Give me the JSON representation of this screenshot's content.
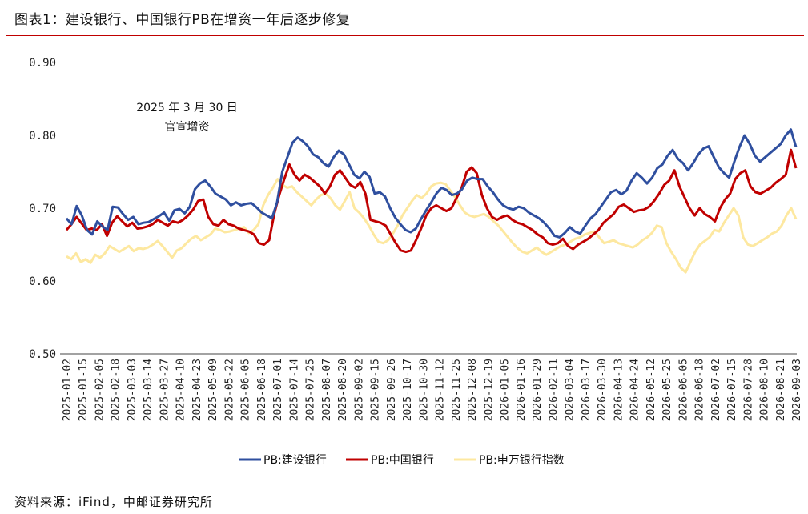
{
  "figure": {
    "title": "图表1：建设银行、中国银行PB在增资一年后逐步修复",
    "source": "资料来源：iFind，中邮证券研究所",
    "accent_color": "#c00000"
  },
  "chart_data": {
    "type": "line",
    "title": "",
    "xlabel": "",
    "ylabel": "",
    "ylim": [
      0.5,
      0.9
    ],
    "yticks": [
      "0.90",
      "0.80",
      "0.70",
      "0.60",
      "0.50"
    ],
    "yticks_values": [
      0.9,
      0.8,
      0.7,
      0.6,
      0.5
    ],
    "grid": false,
    "legend_position": "bottom",
    "x_tick_labels": [
      "2025-01-02",
      "2025-01-15",
      "2025-02-05",
      "2025-02-18",
      "2025-03-03",
      "2025-03-14",
      "2025-03-27",
      "2025-04-10",
      "2025-04-23",
      "2025-05-09",
      "2025-05-22",
      "2025-06-05",
      "2025-06-18",
      "2025-07-01",
      "2025-07-14",
      "2025-07-25",
      "2025-08-07",
      "2025-08-20",
      "2025-09-02",
      "2025-09-15",
      "2025-09-26",
      "2025-10-17",
      "2025-10-30",
      "2025-11-12",
      "2025-11-25",
      "2025-12-08",
      "2025-12-19",
      "2026-01-05",
      "2026-01-16",
      "2026-01-29",
      "2026-02-11",
      "2026-03-04",
      "2026-03-17",
      "2026-03-30",
      "2026-04-13",
      "2026-04-24",
      "2026-05-12",
      "2026-05-25",
      "2026-06-05",
      "2026-06-18",
      "2026-07-02",
      "2026-07-15",
      "2026-07-28",
      "2026-08-10",
      "2026-08-21",
      "2026-09-03"
    ],
    "annotation": {
      "line1": "2025 年 3 月 30 日",
      "line2": "官宣增资",
      "x_tick_index": 6.2
    },
    "series": [
      {
        "name": "PB:建设银行",
        "color": "#2f4f9f",
        "values": [
          0.686,
          0.678,
          0.703,
          0.69,
          0.67,
          0.664,
          0.682,
          0.675,
          0.67,
          0.702,
          0.701,
          0.692,
          0.684,
          0.688,
          0.678,
          0.68,
          0.681,
          0.685,
          0.689,
          0.694,
          0.683,
          0.697,
          0.699,
          0.693,
          0.702,
          0.726,
          0.734,
          0.738,
          0.73,
          0.72,
          0.716,
          0.712,
          0.704,
          0.708,
          0.704,
          0.706,
          0.707,
          0.701,
          0.694,
          0.69,
          0.686,
          0.708,
          0.75,
          0.77,
          0.79,
          0.797,
          0.792,
          0.785,
          0.774,
          0.77,
          0.762,
          0.757,
          0.77,
          0.779,
          0.774,
          0.76,
          0.746,
          0.741,
          0.75,
          0.743,
          0.72,
          0.722,
          0.716,
          0.7,
          0.687,
          0.678,
          0.67,
          0.667,
          0.672,
          0.685,
          0.697,
          0.708,
          0.72,
          0.728,
          0.725,
          0.718,
          0.72,
          0.726,
          0.738,
          0.742,
          0.74,
          0.74,
          0.73,
          0.722,
          0.712,
          0.704,
          0.7,
          0.698,
          0.702,
          0.7,
          0.694,
          0.69,
          0.686,
          0.68,
          0.672,
          0.662,
          0.66,
          0.666,
          0.674,
          0.668,
          0.665,
          0.676,
          0.686,
          0.692,
          0.702,
          0.712,
          0.722,
          0.725,
          0.719,
          0.724,
          0.738,
          0.748,
          0.742,
          0.734,
          0.742,
          0.755,
          0.76,
          0.772,
          0.78,
          0.768,
          0.762,
          0.752,
          0.762,
          0.774,
          0.782,
          0.785,
          0.77,
          0.756,
          0.748,
          0.742,
          0.764,
          0.784,
          0.8,
          0.788,
          0.772,
          0.764,
          0.77,
          0.776,
          0.782,
          0.788,
          0.8,
          0.808,
          0.784
        ]
      },
      {
        "name": "PB:中国银行",
        "color": "#c00000",
        "values": [
          0.67,
          0.678,
          0.688,
          0.679,
          0.67,
          0.672,
          0.67,
          0.678,
          0.662,
          0.68,
          0.689,
          0.682,
          0.675,
          0.68,
          0.672,
          0.673,
          0.675,
          0.678,
          0.684,
          0.68,
          0.676,
          0.682,
          0.68,
          0.684,
          0.69,
          0.698,
          0.71,
          0.712,
          0.688,
          0.678,
          0.676,
          0.684,
          0.678,
          0.676,
          0.672,
          0.67,
          0.668,
          0.664,
          0.652,
          0.65,
          0.656,
          0.692,
          0.718,
          0.74,
          0.76,
          0.746,
          0.738,
          0.746,
          0.742,
          0.736,
          0.73,
          0.72,
          0.73,
          0.746,
          0.752,
          0.742,
          0.732,
          0.728,
          0.736,
          0.72,
          0.684,
          0.682,
          0.68,
          0.676,
          0.664,
          0.652,
          0.642,
          0.64,
          0.642,
          0.656,
          0.672,
          0.69,
          0.7,
          0.704,
          0.7,
          0.696,
          0.7,
          0.714,
          0.728,
          0.75,
          0.756,
          0.748,
          0.718,
          0.7,
          0.688,
          0.684,
          0.688,
          0.69,
          0.684,
          0.68,
          0.678,
          0.674,
          0.67,
          0.664,
          0.66,
          0.652,
          0.65,
          0.652,
          0.658,
          0.648,
          0.644,
          0.65,
          0.654,
          0.658,
          0.664,
          0.67,
          0.68,
          0.686,
          0.692,
          0.702,
          0.705,
          0.7,
          0.695,
          0.697,
          0.698,
          0.702,
          0.71,
          0.72,
          0.732,
          0.738,
          0.752,
          0.73,
          0.715,
          0.7,
          0.69,
          0.7,
          0.692,
          0.688,
          0.682,
          0.7,
          0.712,
          0.72,
          0.74,
          0.748,
          0.752,
          0.73,
          0.722,
          0.72,
          0.724,
          0.728,
          0.735,
          0.74,
          0.746,
          0.78,
          0.755
        ]
      },
      {
        "name": "PB:申万银行指数",
        "color": "#fde8a0",
        "values": [
          0.634,
          0.63,
          0.638,
          0.626,
          0.63,
          0.625,
          0.636,
          0.632,
          0.638,
          0.648,
          0.644,
          0.64,
          0.644,
          0.648,
          0.641,
          0.645,
          0.644,
          0.646,
          0.65,
          0.655,
          0.648,
          0.64,
          0.632,
          0.642,
          0.645,
          0.652,
          0.658,
          0.662,
          0.656,
          0.66,
          0.664,
          0.672,
          0.67,
          0.667,
          0.668,
          0.67,
          0.672,
          0.674,
          0.666,
          0.67,
          0.678,
          0.704,
          0.718,
          0.728,
          0.74,
          0.732,
          0.728,
          0.73,
          0.722,
          0.716,
          0.71,
          0.704,
          0.712,
          0.718,
          0.72,
          0.714,
          0.704,
          0.698,
          0.71,
          0.722,
          0.7,
          0.694,
          0.686,
          0.676,
          0.664,
          0.654,
          0.652,
          0.656,
          0.665,
          0.676,
          0.69,
          0.7,
          0.71,
          0.718,
          0.714,
          0.72,
          0.73,
          0.734,
          0.735,
          0.733,
          0.724,
          0.715,
          0.704,
          0.694,
          0.69,
          0.688,
          0.69,
          0.692,
          0.688,
          0.682,
          0.676,
          0.668,
          0.66,
          0.652,
          0.645,
          0.64,
          0.638,
          0.642,
          0.646,
          0.64,
          0.636,
          0.64,
          0.644,
          0.648,
          0.65,
          0.654,
          0.658,
          0.66,
          0.664,
          0.666,
          0.668,
          0.66,
          0.652,
          0.654,
          0.656,
          0.652,
          0.65,
          0.648,
          0.646,
          0.65,
          0.656,
          0.66,
          0.666,
          0.676,
          0.674,
          0.652,
          0.64,
          0.63,
          0.618,
          0.612,
          0.626,
          0.64,
          0.65,
          0.655,
          0.66,
          0.67,
          0.668,
          0.68,
          0.69,
          0.7,
          0.69,
          0.66,
          0.65,
          0.648,
          0.652,
          0.656,
          0.66,
          0.665,
          0.668,
          0.676,
          0.69,
          0.7,
          0.685
        ]
      }
    ]
  }
}
